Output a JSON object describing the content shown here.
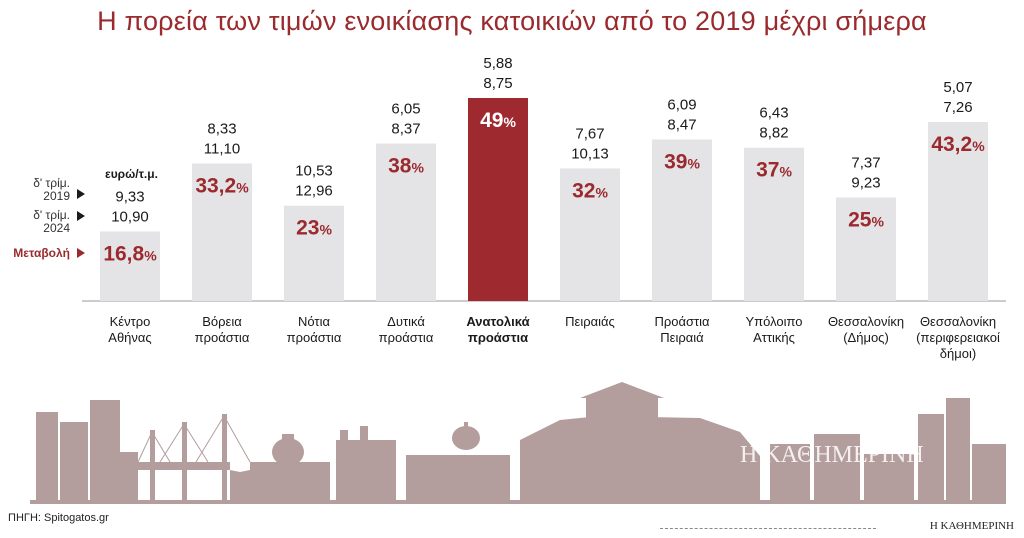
{
  "title": "Η πορεία των τιμών ενοικίασης κατοικιών από το 2019 μέχρι σήμερα",
  "colors": {
    "bar": "#e4e4e6",
    "highlight": "#9e2a2f",
    "accent": "#9a2a2e",
    "skyline": "#b09a9a"
  },
  "legend": {
    "unit": "ευρώ/τ.μ.",
    "row1_label_a": "δ' τρίμ.",
    "row1_label_b": "2019",
    "row2_label_a": "δ' τρίμ.",
    "row2_label_b": "2024",
    "change_label": "Μεταβολή",
    "arrow_icon": "triangle-right-icon"
  },
  "chart_data": {
    "type": "bar",
    "value_kind": "percent change",
    "categories": [
      [
        "Κέντρο",
        "Αθήνας"
      ],
      [
        "Βόρεια",
        "προάστια"
      ],
      [
        "Νότια",
        "προάστια"
      ],
      [
        "Δυτικά",
        "προάστια"
      ],
      [
        "Ανατολικά",
        "προάστια"
      ],
      [
        "Πειραιάς"
      ],
      [
        "Προάστια",
        "Πειραιά"
      ],
      [
        "Υπόλοιπο",
        "Αττικής"
      ],
      [
        "Θεσσαλονίκη",
        "(Δήμος)"
      ],
      [
        "Θεσσαλονίκη",
        "(περιφερειακοί",
        "δήμοι)"
      ]
    ],
    "price_2019": [
      "9,33",
      "8,33",
      "10,53",
      "6,05",
      "5,88",
      "7,67",
      "6,09",
      "6,43",
      "7,37",
      "5,07"
    ],
    "price_2024": [
      "10,90",
      "11,10",
      "12,96",
      "8,37",
      "8,75",
      "10,13",
      "8,47",
      "8,82",
      "9,23",
      "7,26"
    ],
    "change_number": [
      "16,8",
      "33,2",
      "23",
      "38",
      "49",
      "32",
      "39",
      "37",
      "25",
      "43,2"
    ],
    "change_unit": "%",
    "values": [
      16.8,
      33.2,
      23,
      38,
      49,
      32,
      39,
      37,
      25,
      43.2
    ],
    "highlight_index": 4,
    "ylim": [
      0,
      49
    ]
  },
  "skyline_icon": "athens-skyline-illustration",
  "watermark": "Η ΚΑΘΗΜΕΡΙΝΗ",
  "source": "ΠΗΓΗ: Spitogatos.gr",
  "brand": "Η ΚΑΘΗΜΕΡΙΝΗ"
}
